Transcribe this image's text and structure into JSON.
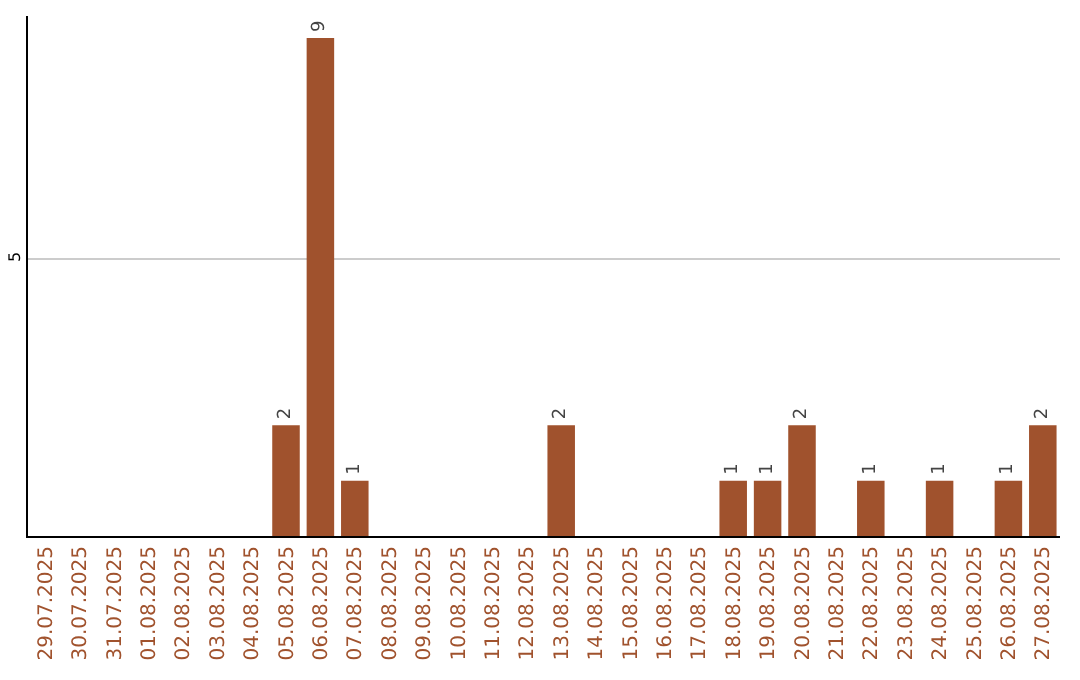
{
  "chart_data": {
    "type": "bar",
    "categories": [
      "29.07.2025",
      "30.07.2025",
      "31.07.2025",
      "01.08.2025",
      "02.08.2025",
      "03.08.2025",
      "04.08.2025",
      "05.08.2025",
      "06.08.2025",
      "07.08.2025",
      "08.08.2025",
      "09.08.2025",
      "10.08.2025",
      "11.08.2025",
      "12.08.2025",
      "13.08.2025",
      "14.08.2025",
      "15.08.2025",
      "16.08.2025",
      "17.08.2025",
      "18.08.2025",
      "19.08.2025",
      "20.08.2025",
      "21.08.2025",
      "22.08.2025",
      "23.08.2025",
      "24.08.2025",
      "25.08.2025",
      "26.08.2025",
      "27.08.2025"
    ],
    "values": [
      0,
      0,
      0,
      0,
      0,
      0,
      0,
      2,
      9,
      1,
      0,
      0,
      0,
      0,
      0,
      2,
      0,
      0,
      0,
      0,
      1,
      1,
      2,
      0,
      1,
      0,
      1,
      0,
      1,
      2
    ],
    "color": "#a0522d",
    "value_labels": [
      null,
      null,
      null,
      null,
      null,
      null,
      null,
      "2",
      "9",
      "1",
      null,
      null,
      null,
      null,
      null,
      "2",
      null,
      null,
      null,
      null,
      "1",
      "1",
      "2",
      null,
      "1",
      null,
      "1",
      null,
      "1",
      "2"
    ],
    "ylim": [
      0,
      9.4
    ],
    "yticks": [
      5
    ],
    "grid": "y"
  }
}
